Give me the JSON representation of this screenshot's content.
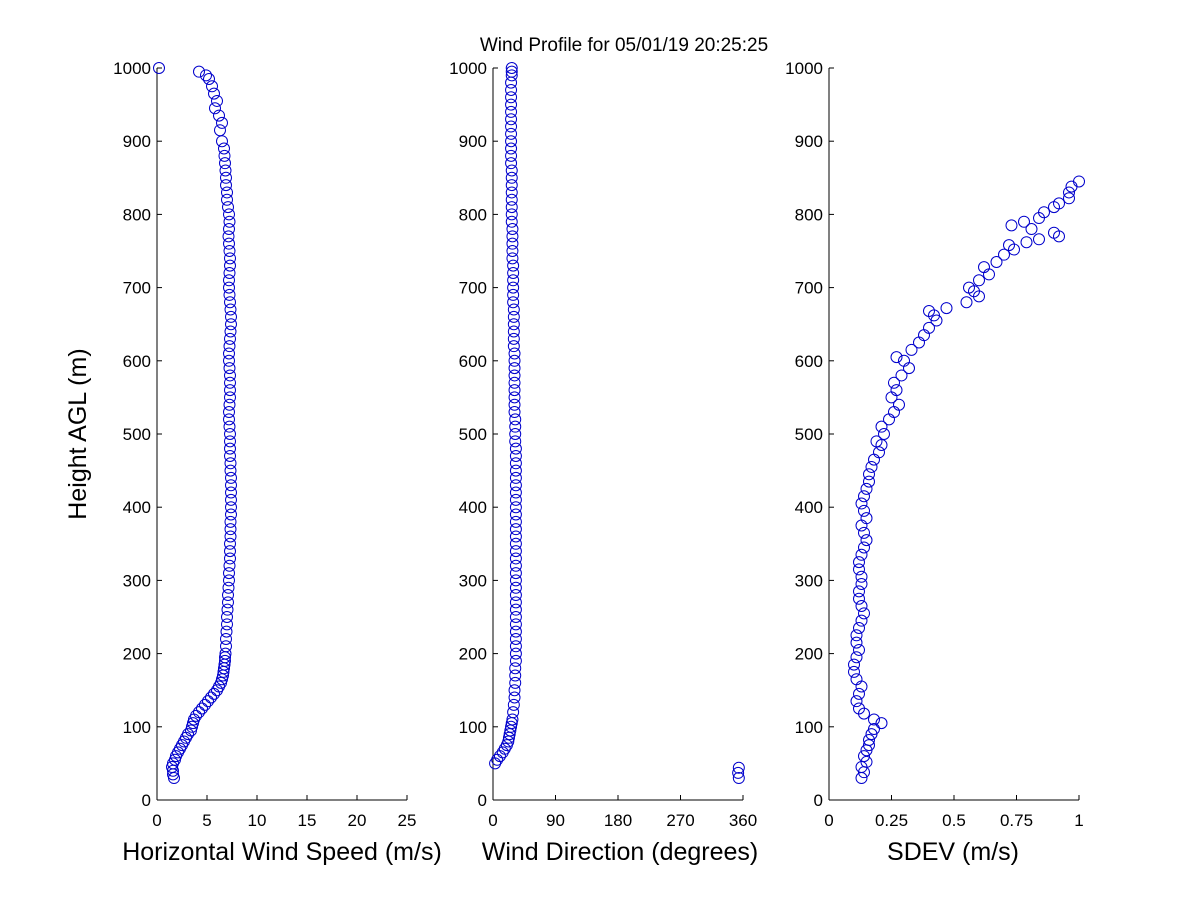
{
  "figure": {
    "title": "Wind Profile for  05/01/19 20:25:25",
    "marker_color": "#0000cc",
    "background": "#ffffff"
  },
  "chart_data": [
    {
      "type": "scatter",
      "title": "Wind Profile for  05/01/19 20:25:25",
      "xlabel": "Horizontal Wind Speed (m/s)",
      "ylabel": "Height AGL (m)",
      "xlim": [
        0,
        25
      ],
      "ylim": [
        0,
        1000
      ],
      "xticks": [
        "0",
        "5",
        "10",
        "15",
        "20",
        "25"
      ],
      "yticks": [
        "0",
        "100",
        "200",
        "300",
        "400",
        "500",
        "600",
        "700",
        "800",
        "900",
        "1000"
      ],
      "xtick_values": [
        0,
        5,
        10,
        15,
        20,
        25
      ],
      "ytick_values": [
        0,
        100,
        200,
        300,
        400,
        500,
        600,
        700,
        800,
        900,
        1000
      ],
      "grid": false,
      "marker": "open-circle",
      "points": [
        [
          1.7,
          30
        ],
        [
          1.6,
          35
        ],
        [
          1.6,
          40
        ],
        [
          1.5,
          45
        ],
        [
          1.6,
          50
        ],
        [
          1.8,
          55
        ],
        [
          1.9,
          60
        ],
        [
          2.1,
          65
        ],
        [
          2.3,
          70
        ],
        [
          2.5,
          75
        ],
        [
          2.7,
          80
        ],
        [
          2.9,
          85
        ],
        [
          3.1,
          90
        ],
        [
          3.4,
          95
        ],
        [
          3.5,
          100
        ],
        [
          3.6,
          105
        ],
        [
          3.7,
          110
        ],
        [
          3.9,
          115
        ],
        [
          4.2,
          120
        ],
        [
          4.5,
          125
        ],
        [
          4.8,
          130
        ],
        [
          5.1,
          135
        ],
        [
          5.4,
          140
        ],
        [
          5.7,
          145
        ],
        [
          6.0,
          150
        ],
        [
          6.2,
          155
        ],
        [
          6.4,
          160
        ],
        [
          6.5,
          165
        ],
        [
          6.6,
          170
        ],
        [
          6.65,
          175
        ],
        [
          6.7,
          180
        ],
        [
          6.75,
          185
        ],
        [
          6.8,
          190
        ],
        [
          6.8,
          195
        ],
        [
          6.85,
          200
        ],
        [
          6.9,
          210
        ],
        [
          6.9,
          220
        ],
        [
          6.95,
          230
        ],
        [
          7.0,
          240
        ],
        [
          7.0,
          250
        ],
        [
          7.05,
          260
        ],
        [
          7.1,
          270
        ],
        [
          7.1,
          280
        ],
        [
          7.15,
          290
        ],
        [
          7.2,
          300
        ],
        [
          7.2,
          310
        ],
        [
          7.25,
          320
        ],
        [
          7.3,
          330
        ],
        [
          7.3,
          340
        ],
        [
          7.3,
          350
        ],
        [
          7.35,
          360
        ],
        [
          7.35,
          370
        ],
        [
          7.35,
          380
        ],
        [
          7.4,
          390
        ],
        [
          7.4,
          400
        ],
        [
          7.4,
          410
        ],
        [
          7.4,
          420
        ],
        [
          7.4,
          430
        ],
        [
          7.4,
          440
        ],
        [
          7.35,
          450
        ],
        [
          7.35,
          460
        ],
        [
          7.3,
          470
        ],
        [
          7.3,
          480
        ],
        [
          7.3,
          490
        ],
        [
          7.3,
          500
        ],
        [
          7.25,
          510
        ],
        [
          7.2,
          520
        ],
        [
          7.2,
          530
        ],
        [
          7.25,
          540
        ],
        [
          7.3,
          550
        ],
        [
          7.3,
          560
        ],
        [
          7.3,
          570
        ],
        [
          7.3,
          580
        ],
        [
          7.25,
          590
        ],
        [
          7.2,
          600
        ],
        [
          7.2,
          610
        ],
        [
          7.25,
          620
        ],
        [
          7.3,
          630
        ],
        [
          7.35,
          640
        ],
        [
          7.4,
          650
        ],
        [
          7.4,
          660
        ],
        [
          7.35,
          670
        ],
        [
          7.3,
          680
        ],
        [
          7.25,
          690
        ],
        [
          7.2,
          700
        ],
        [
          7.2,
          710
        ],
        [
          7.25,
          720
        ],
        [
          7.3,
          730
        ],
        [
          7.3,
          740
        ],
        [
          7.25,
          750
        ],
        [
          7.2,
          760
        ],
        [
          7.15,
          770
        ],
        [
          7.2,
          780
        ],
        [
          7.25,
          790
        ],
        [
          7.2,
          800
        ],
        [
          7.1,
          810
        ],
        [
          7.0,
          820
        ],
        [
          7.0,
          830
        ],
        [
          6.9,
          840
        ],
        [
          6.9,
          850
        ],
        [
          6.85,
          860
        ],
        [
          6.8,
          870
        ],
        [
          6.75,
          880
        ],
        [
          6.7,
          890
        ],
        [
          6.5,
          900
        ],
        [
          6.3,
          915
        ],
        [
          6.5,
          925
        ],
        [
          6.2,
          935
        ],
        [
          5.8,
          945
        ],
        [
          6.0,
          955
        ],
        [
          5.7,
          965
        ],
        [
          5.5,
          975
        ],
        [
          5.2,
          985
        ],
        [
          4.9,
          990
        ],
        [
          4.2,
          995
        ],
        [
          0.2,
          1000
        ]
      ]
    },
    {
      "type": "scatter",
      "xlabel": "Wind Direction (degrees)",
      "ylabel": "",
      "xlim": [
        0,
        360
      ],
      "ylim": [
        0,
        1000
      ],
      "xticks": [
        "0",
        "90",
        "180",
        "270",
        "360"
      ],
      "yticks": [
        "0",
        "100",
        "200",
        "300",
        "400",
        "500",
        "600",
        "700",
        "800",
        "900",
        "1000"
      ],
      "xtick_values": [
        0,
        90,
        180,
        270,
        360
      ],
      "ytick_values": [
        0,
        100,
        200,
        300,
        400,
        500,
        600,
        700,
        800,
        900,
        1000
      ],
      "grid": false,
      "marker": "open-circle",
      "points": [
        [
          354,
          30
        ],
        [
          353,
          37
        ],
        [
          354,
          44
        ],
        [
          3,
          50
        ],
        [
          6,
          55
        ],
        [
          10,
          60
        ],
        [
          14,
          65
        ],
        [
          17,
          70
        ],
        [
          20,
          75
        ],
        [
          22,
          80
        ],
        [
          23,
          85
        ],
        [
          24,
          90
        ],
        [
          25,
          95
        ],
        [
          26,
          100
        ],
        [
          27,
          105
        ],
        [
          28,
          110
        ],
        [
          29,
          120
        ],
        [
          30,
          130
        ],
        [
          31,
          140
        ],
        [
          31,
          150
        ],
        [
          32,
          160
        ],
        [
          32,
          170
        ],
        [
          32,
          180
        ],
        [
          33,
          190
        ],
        [
          33,
          200
        ],
        [
          33,
          210
        ],
        [
          33,
          220
        ],
        [
          33,
          230
        ],
        [
          33,
          240
        ],
        [
          33,
          250
        ],
        [
          33,
          260
        ],
        [
          33,
          270
        ],
        [
          33,
          280
        ],
        [
          33,
          290
        ],
        [
          33,
          300
        ],
        [
          33,
          310
        ],
        [
          33,
          320
        ],
        [
          33,
          330
        ],
        [
          33,
          340
        ],
        [
          33,
          350
        ],
        [
          33,
          360
        ],
        [
          33,
          370
        ],
        [
          33,
          380
        ],
        [
          33,
          390
        ],
        [
          33,
          400
        ],
        [
          33,
          410
        ],
        [
          33,
          420
        ],
        [
          33,
          430
        ],
        [
          33,
          440
        ],
        [
          33,
          450
        ],
        [
          33,
          460
        ],
        [
          33,
          470
        ],
        [
          33,
          480
        ],
        [
          32,
          490
        ],
        [
          32,
          500
        ],
        [
          32,
          510
        ],
        [
          32,
          520
        ],
        [
          31,
          530
        ],
        [
          31,
          540
        ],
        [
          31,
          550
        ],
        [
          31,
          560
        ],
        [
          31,
          570
        ],
        [
          31,
          580
        ],
        [
          31,
          590
        ],
        [
          31,
          600
        ],
        [
          31,
          610
        ],
        [
          30,
          620
        ],
        [
          30,
          630
        ],
        [
          30,
          640
        ],
        [
          30,
          650
        ],
        [
          30,
          660
        ],
        [
          30,
          670
        ],
        [
          29,
          680
        ],
        [
          29,
          690
        ],
        [
          29,
          700
        ],
        [
          29,
          710
        ],
        [
          29,
          720
        ],
        [
          29,
          730
        ],
        [
          28,
          740
        ],
        [
          28,
          750
        ],
        [
          28,
          760
        ],
        [
          28,
          770
        ],
        [
          28,
          780
        ],
        [
          27,
          790
        ],
        [
          27,
          800
        ],
        [
          27,
          810
        ],
        [
          27,
          820
        ],
        [
          27,
          830
        ],
        [
          27,
          840
        ],
        [
          27,
          850
        ],
        [
          27,
          860
        ],
        [
          26,
          870
        ],
        [
          26,
          880
        ],
        [
          26,
          890
        ],
        [
          26,
          900
        ],
        [
          26,
          910
        ],
        [
          26,
          920
        ],
        [
          26,
          930
        ],
        [
          26,
          940
        ],
        [
          26,
          950
        ],
        [
          26,
          960
        ],
        [
          26,
          970
        ],
        [
          26,
          980
        ],
        [
          27,
          990
        ],
        [
          27,
          995
        ],
        [
          27,
          1000
        ]
      ]
    },
    {
      "type": "scatter",
      "xlabel": "SDEV  (m/s)",
      "ylabel": "",
      "xlim": [
        0,
        1
      ],
      "ylim": [
        0,
        1000
      ],
      "xticks": [
        "0",
        "0.25",
        "0.5",
        "0.75",
        "1"
      ],
      "yticks": [
        "0",
        "100",
        "200",
        "300",
        "400",
        "500",
        "600",
        "700",
        "800",
        "900",
        "1000"
      ],
      "xtick_values": [
        0,
        0.25,
        0.5,
        0.75,
        1
      ],
      "ytick_values": [
        0,
        100,
        200,
        300,
        400,
        500,
        600,
        700,
        800,
        900,
        1000
      ],
      "grid": false,
      "marker": "open-circle",
      "points": [
        [
          0.13,
          30
        ],
        [
          0.14,
          38
        ],
        [
          0.13,
          45
        ],
        [
          0.15,
          52
        ],
        [
          0.14,
          60
        ],
        [
          0.15,
          68
        ],
        [
          0.16,
          75
        ],
        [
          0.16,
          82
        ],
        [
          0.17,
          90
        ],
        [
          0.18,
          97
        ],
        [
          0.21,
          105
        ],
        [
          0.18,
          110
        ],
        [
          0.14,
          118
        ],
        [
          0.12,
          125
        ],
        [
          0.11,
          135
        ],
        [
          0.12,
          145
        ],
        [
          0.13,
          155
        ],
        [
          0.11,
          165
        ],
        [
          0.1,
          175
        ],
        [
          0.1,
          185
        ],
        [
          0.11,
          195
        ],
        [
          0.12,
          205
        ],
        [
          0.11,
          215
        ],
        [
          0.11,
          225
        ],
        [
          0.12,
          235
        ],
        [
          0.13,
          245
        ],
        [
          0.14,
          255
        ],
        [
          0.13,
          265
        ],
        [
          0.12,
          275
        ],
        [
          0.12,
          285
        ],
        [
          0.13,
          295
        ],
        [
          0.13,
          305
        ],
        [
          0.12,
          315
        ],
        [
          0.12,
          325
        ],
        [
          0.13,
          335
        ],
        [
          0.14,
          345
        ],
        [
          0.15,
          355
        ],
        [
          0.14,
          365
        ],
        [
          0.13,
          375
        ],
        [
          0.15,
          385
        ],
        [
          0.14,
          395
        ],
        [
          0.13,
          405
        ],
        [
          0.14,
          415
        ],
        [
          0.15,
          425
        ],
        [
          0.16,
          435
        ],
        [
          0.16,
          445
        ],
        [
          0.17,
          455
        ],
        [
          0.18,
          465
        ],
        [
          0.2,
          475
        ],
        [
          0.21,
          485
        ],
        [
          0.19,
          490
        ],
        [
          0.22,
          500
        ],
        [
          0.21,
          510
        ],
        [
          0.24,
          520
        ],
        [
          0.26,
          530
        ],
        [
          0.28,
          540
        ],
        [
          0.25,
          550
        ],
        [
          0.27,
          560
        ],
        [
          0.26,
          570
        ],
        [
          0.29,
          580
        ],
        [
          0.32,
          590
        ],
        [
          0.3,
          600
        ],
        [
          0.27,
          605
        ],
        [
          0.33,
          615
        ],
        [
          0.36,
          625
        ],
        [
          0.38,
          635
        ],
        [
          0.4,
          645
        ],
        [
          0.43,
          655
        ],
        [
          0.42,
          662
        ],
        [
          0.4,
          668
        ],
        [
          0.47,
          672
        ],
        [
          0.55,
          680
        ],
        [
          0.6,
          688
        ],
        [
          0.58,
          695
        ],
        [
          0.56,
          700
        ],
        [
          0.6,
          710
        ],
        [
          0.64,
          718
        ],
        [
          0.62,
          728
        ],
        [
          0.67,
          735
        ],
        [
          0.7,
          745
        ],
        [
          0.74,
          752
        ],
        [
          0.72,
          758
        ],
        [
          0.79,
          762
        ],
        [
          0.84,
          766
        ],
        [
          0.92,
          770
        ],
        [
          0.9,
          775
        ],
        [
          0.81,
          780
        ],
        [
          0.73,
          785
        ],
        [
          0.78,
          790
        ],
        [
          0.84,
          795
        ],
        [
          0.86,
          803
        ],
        [
          0.9,
          810
        ],
        [
          0.92,
          815
        ],
        [
          0.96,
          822
        ],
        [
          0.96,
          830
        ],
        [
          0.97,
          838
        ],
        [
          1.0,
          845
        ]
      ]
    }
  ]
}
